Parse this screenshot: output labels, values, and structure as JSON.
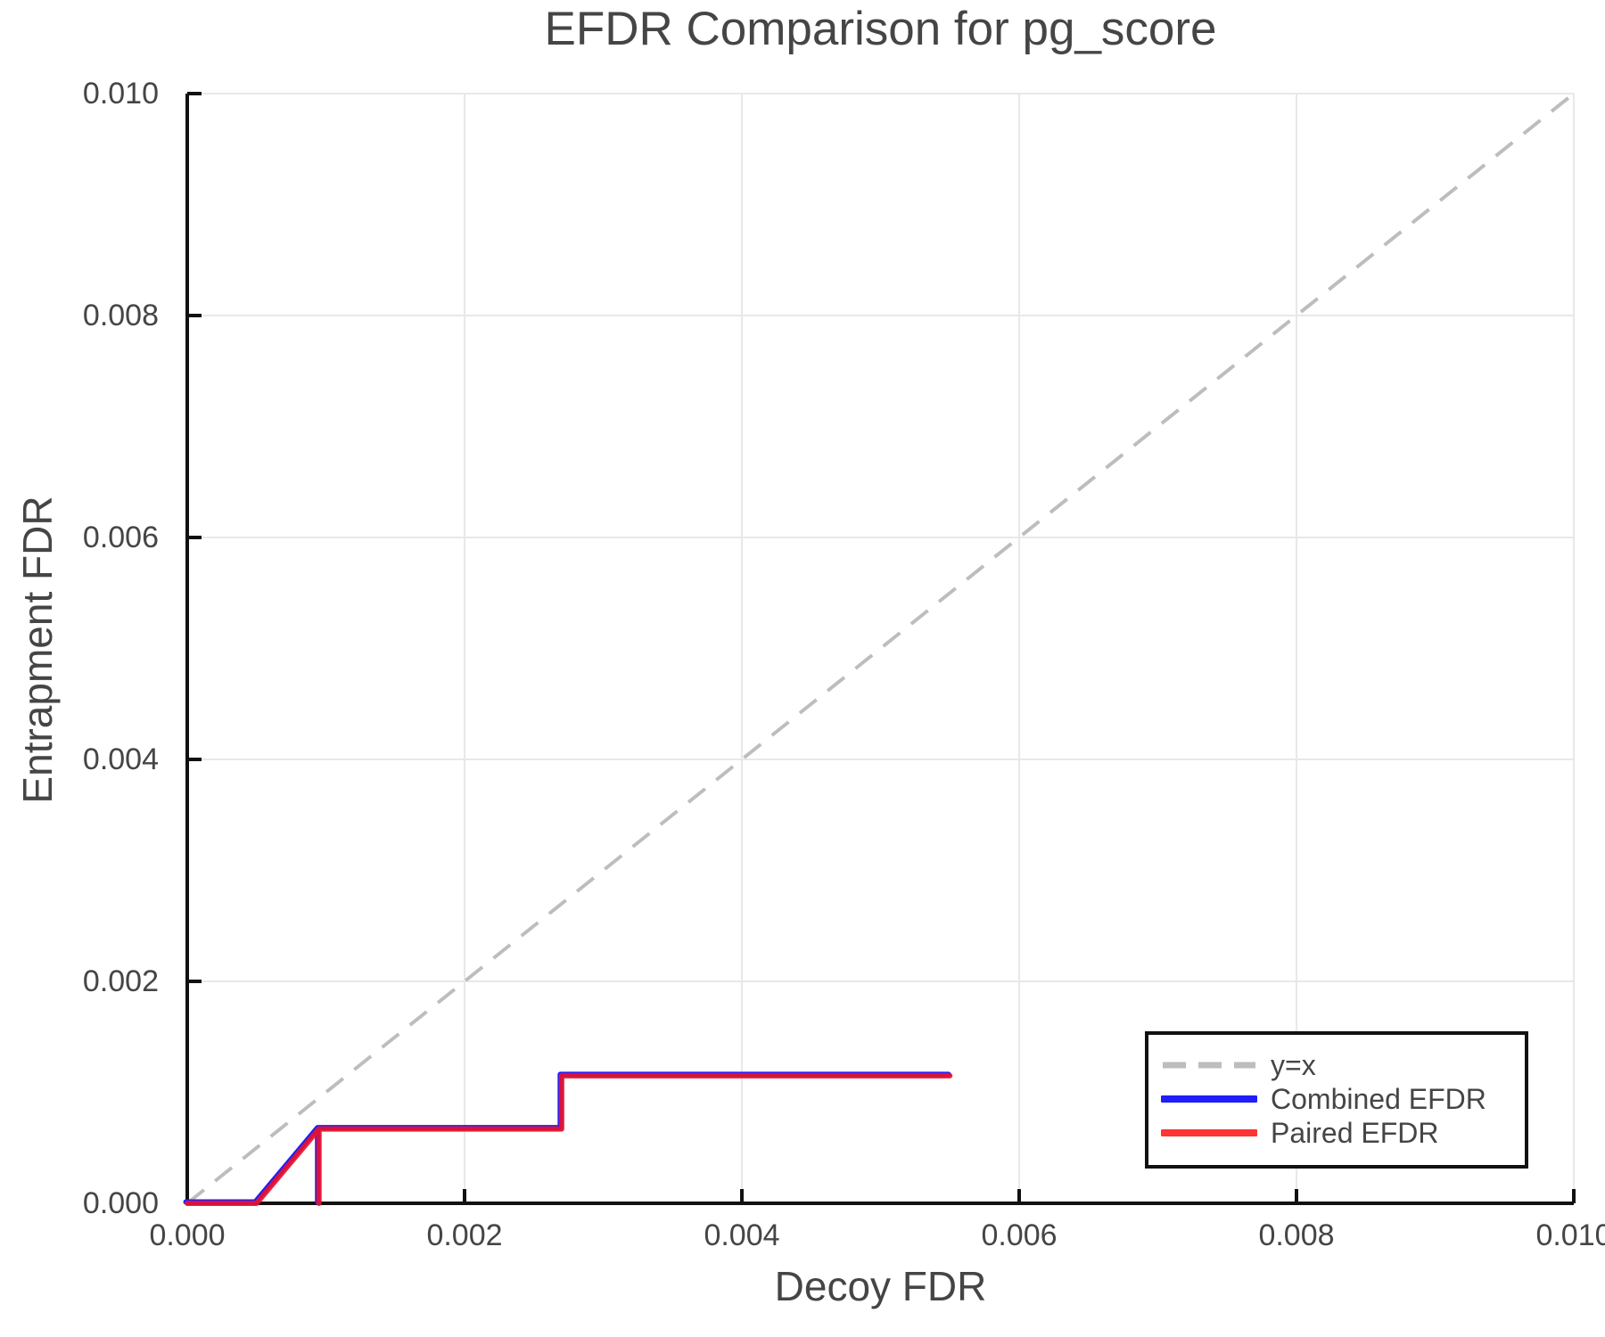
{
  "title": "EFDR Comparison for pg_score",
  "axes": {
    "x_title": "Decoy FDR",
    "y_title": "Entrapment FDR",
    "x_tick_labels": [
      "0.000",
      "0.002",
      "0.004",
      "0.006",
      "0.008",
      "0.010"
    ],
    "y_tick_labels": [
      "0.000",
      "0.002",
      "0.004",
      "0.006",
      "0.008",
      "0.010"
    ]
  },
  "legend": {
    "items": [
      {
        "label": "y=x"
      },
      {
        "label": "Combined EFDR"
      },
      {
        "label": "Paired EFDR"
      }
    ]
  },
  "colors": {
    "background": "#ffffff",
    "text": "#454545",
    "spine": "#111111",
    "grid": "#e8e8e8",
    "identity_line": "#bdbdbd",
    "combined": "#1e1eff",
    "paired": "#e8112d",
    "paired_legend": "#ff3333",
    "legend_border": "#111111"
  },
  "chart_data": {
    "type": "line",
    "title": "EFDR Comparison for pg_score",
    "xlabel": "Decoy FDR",
    "ylabel": "Entrapment FDR",
    "xlim": [
      0,
      0.01
    ],
    "ylim": [
      0,
      0.01
    ],
    "xticks": [
      0,
      0.002,
      0.004,
      0.006,
      0.008,
      0.01
    ],
    "yticks": [
      0,
      0.002,
      0.004,
      0.006,
      0.008,
      0.01
    ],
    "grid": true,
    "legend_position": "lower right",
    "series": [
      {
        "name": "y=x",
        "style": "dashed",
        "color": "#bdbdbd",
        "points": [
          [
            0,
            0
          ],
          [
            0.01,
            0.01
          ]
        ]
      },
      {
        "name": "Combined EFDR",
        "style": "solid",
        "color": "#1e1eff",
        "points": [
          [
            0,
            0
          ],
          [
            0.0005,
            0
          ],
          [
            0.00095,
            0.00067
          ],
          [
            0.00095,
            0
          ],
          [
            0.00095,
            0.00067
          ],
          [
            0.0027,
            0.00067
          ],
          [
            0.0027,
            0.00115
          ],
          [
            0.0055,
            0.00115
          ]
        ]
      },
      {
        "name": "Paired EFDR",
        "style": "solid",
        "color": "#e8112d",
        "points": [
          [
            0,
            0
          ],
          [
            0.0005,
            0
          ],
          [
            0.00095,
            0.00067
          ],
          [
            0.00095,
            0
          ],
          [
            0.00095,
            0.00067
          ],
          [
            0.0027,
            0.00067
          ],
          [
            0.0027,
            0.00115
          ],
          [
            0.0055,
            0.00115
          ]
        ]
      }
    ]
  }
}
